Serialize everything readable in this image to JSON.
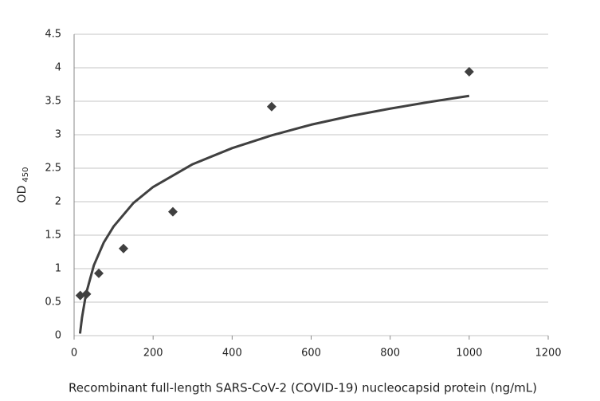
{
  "chart_data": {
    "type": "scatter",
    "xlabel": "Recombinant full-length SARS-CoV-2 (COVID-19) nucleocapsid protein (ng/mL)",
    "ylabel": "OD",
    "ylabel_subscript": "450",
    "xlim": [
      0,
      1200
    ],
    "xticks": [
      0,
      200,
      400,
      600,
      800,
      1000,
      1200
    ],
    "ylim": [
      0,
      4.5
    ],
    "yticks": [
      0,
      0.5,
      1,
      1.5,
      2,
      2.5,
      3,
      3.5,
      4,
      4.5
    ],
    "grid": true,
    "series": [
      {
        "color": "#404040",
        "marker": "diamond",
        "x": [
          15.6,
          31.25,
          62.5,
          125,
          250,
          500,
          1000
        ],
        "values": [
          0.6,
          0.62,
          0.93,
          1.3,
          1.85,
          3.42,
          3.94
        ]
      },
      {
        "color": "#404040",
        "marker": "line",
        "x": [
          15,
          20,
          30,
          50,
          75,
          100,
          150,
          200,
          300,
          400,
          500,
          600,
          700,
          800,
          900,
          1000
        ],
        "values": [
          0.03,
          0.27,
          0.62,
          1.05,
          1.39,
          1.63,
          1.98,
          2.22,
          2.56,
          2.8,
          2.99,
          3.15,
          3.28,
          3.39,
          3.49,
          3.58
        ]
      }
    ]
  }
}
